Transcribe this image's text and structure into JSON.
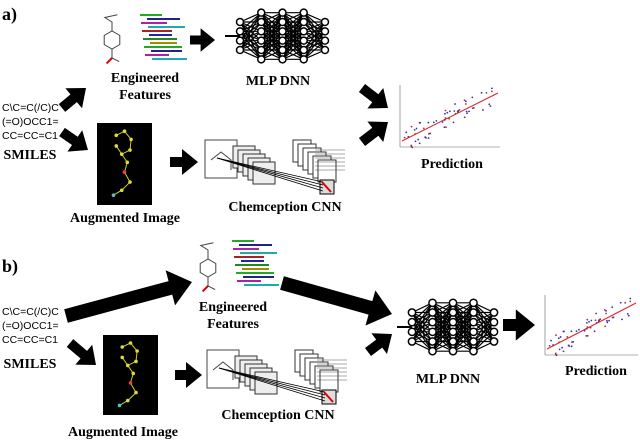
{
  "panels": [
    {
      "label": "a)",
      "smiles": [
        "C\\C=C(/C)C",
        "(=O)OCC1=",
        "CC=CC=C1"
      ],
      "input_label": "SMILES",
      "features_label": [
        "Engineered",
        "Features"
      ],
      "mlp_label": "MLP DNN",
      "image_label": "Augmented Image",
      "cnn_label": "Chemception CNN",
      "prediction_label": "Prediction"
    },
    {
      "label": "b)",
      "smiles": [
        "C\\C=C(/C)C",
        "(=O)OCC1=",
        "CC=CC=C1"
      ],
      "input_label": "SMILES",
      "features_label": [
        "Engineered",
        "Features"
      ],
      "mlp_label": "MLP DNN",
      "image_label": "Augmented Image",
      "cnn_label": "Chemception CNN",
      "prediction_label": "Prediction"
    }
  ]
}
